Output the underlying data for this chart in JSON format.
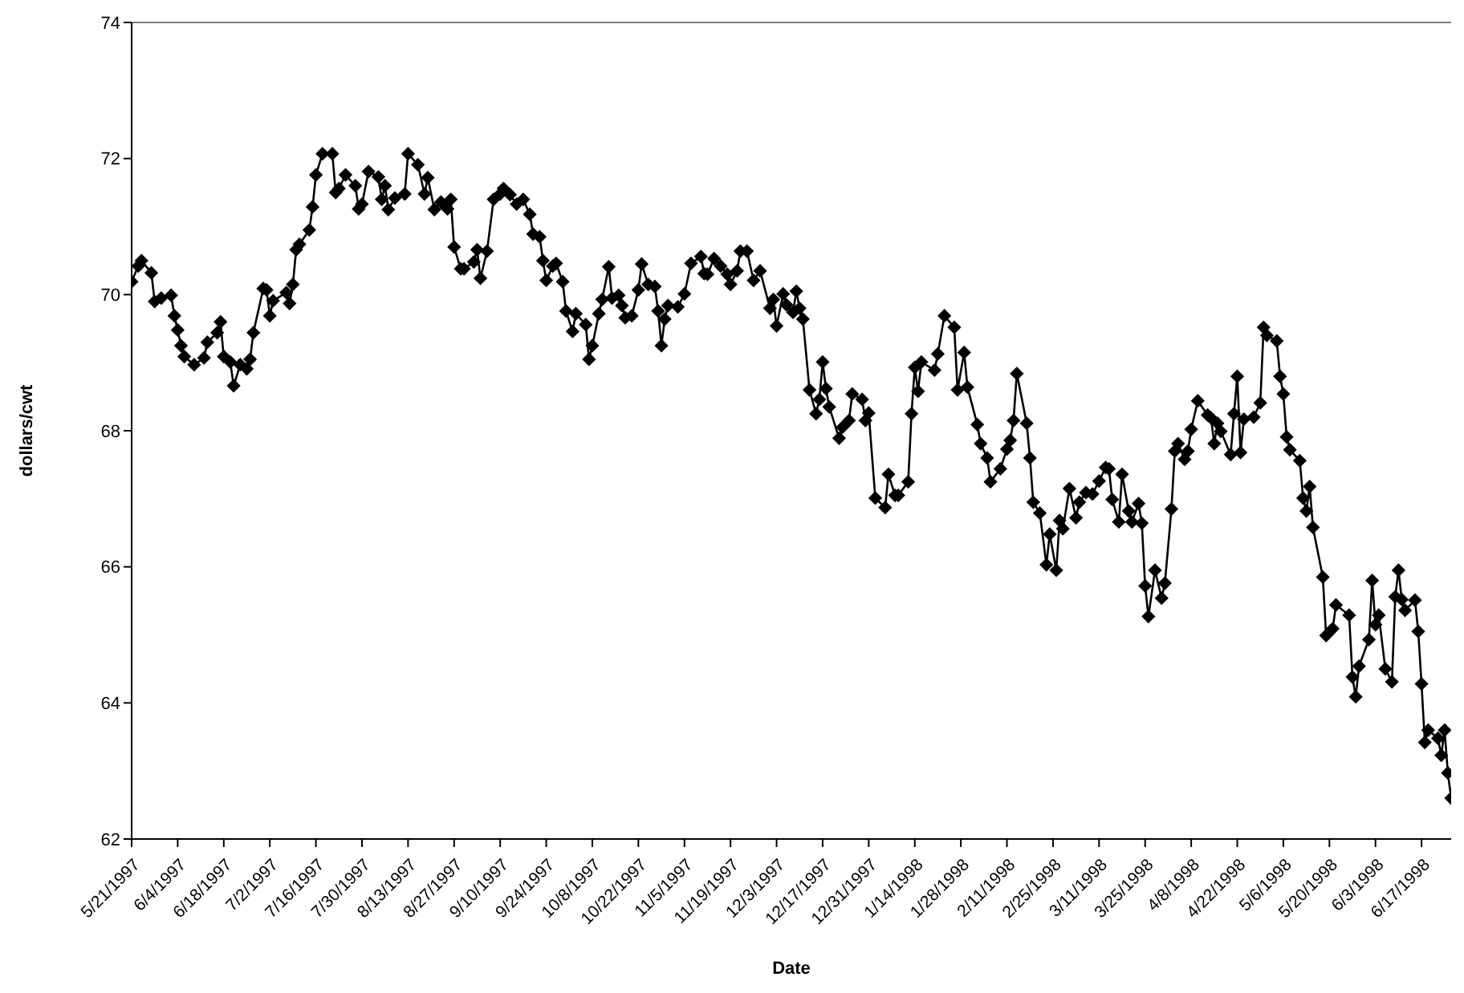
{
  "chart_data": {
    "type": "line",
    "xlabel": "Date",
    "ylabel": "dollars/cwt",
    "ylim": [
      62,
      74
    ],
    "yticks": [
      62,
      64,
      66,
      68,
      70,
      72,
      74
    ],
    "xlim": [
      "1997-05-21",
      "1998-06-26"
    ],
    "xticks": [
      {
        "value": "1997-05-21",
        "label": "5/21/1997"
      },
      {
        "value": "1997-06-04",
        "label": "6/4/1997"
      },
      {
        "value": "1997-06-18",
        "label": "6/18/1997"
      },
      {
        "value": "1997-07-02",
        "label": "7/2/1997"
      },
      {
        "value": "1997-07-16",
        "label": "7/16/1997"
      },
      {
        "value": "1997-07-30",
        "label": "7/30/1997"
      },
      {
        "value": "1997-08-13",
        "label": "8/13/1997"
      },
      {
        "value": "1997-08-27",
        "label": "8/27/1997"
      },
      {
        "value": "1997-09-10",
        "label": "9/10/1997"
      },
      {
        "value": "1997-09-24",
        "label": "9/24/1997"
      },
      {
        "value": "1997-10-08",
        "label": "10/8/1997"
      },
      {
        "value": "1997-10-22",
        "label": "10/22/1997"
      },
      {
        "value": "1997-11-05",
        "label": "11/5/1997"
      },
      {
        "value": "1997-11-19",
        "label": "11/19/1997"
      },
      {
        "value": "1997-12-03",
        "label": "12/3/1997"
      },
      {
        "value": "1997-12-17",
        "label": "12/17/1997"
      },
      {
        "value": "1997-12-31",
        "label": "12/31/1997"
      },
      {
        "value": "1998-01-14",
        "label": "1/14/1998"
      },
      {
        "value": "1998-01-28",
        "label": "1/28/1998"
      },
      {
        "value": "1998-02-11",
        "label": "2/11/1998"
      },
      {
        "value": "1998-02-25",
        "label": "2/25/1998"
      },
      {
        "value": "1998-03-11",
        "label": "3/11/1998"
      },
      {
        "value": "1998-03-25",
        "label": "3/25/1998"
      },
      {
        "value": "1998-04-08",
        "label": "4/8/1998"
      },
      {
        "value": "1998-04-22",
        "label": "4/22/1998"
      },
      {
        "value": "1998-05-06",
        "label": "5/6/1998"
      },
      {
        "value": "1998-05-20",
        "label": "5/20/1998"
      },
      {
        "value": "1998-06-03",
        "label": "6/3/1998"
      },
      {
        "value": "1998-06-17",
        "label": "6/17/1998"
      }
    ],
    "grid": false,
    "legend": false,
    "marker": "diamond",
    "line_style": "solid",
    "series": [
      {
        "color": "#000000",
        "x": [
          "1997-05-21",
          "1997-05-23",
          "1997-05-24",
          "1997-05-27",
          "1997-05-28",
          "1997-05-30",
          "1997-06-02",
          "1997-06-03",
          "1997-06-04",
          "1997-06-05",
          "1997-06-06",
          "1997-06-09",
          "1997-06-12",
          "1997-06-13",
          "1997-06-16",
          "1997-06-17",
          "1997-06-18",
          "1997-06-20",
          "1997-06-21",
          "1997-06-23",
          "1997-06-25",
          "1997-06-26",
          "1997-06-27",
          "1997-06-30",
          "1997-07-01",
          "1997-07-02",
          "1997-07-03",
          "1997-07-07",
          "1997-07-08",
          "1997-07-09",
          "1997-07-10",
          "1997-07-11",
          "1997-07-14",
          "1997-07-15",
          "1997-07-16",
          "1997-07-18",
          "1997-07-21",
          "1997-07-22",
          "1997-07-23",
          "1997-07-25",
          "1997-07-28",
          "1997-07-29",
          "1997-07-30",
          "1997-08-01",
          "1997-08-04",
          "1997-08-05",
          "1997-08-06",
          "1997-08-07",
          "1997-08-09",
          "1997-08-12",
          "1997-08-13",
          "1997-08-16",
          "1997-08-18",
          "1997-08-19",
          "1997-08-21",
          "1997-08-23",
          "1997-08-25",
          "1997-08-26",
          "1997-08-27",
          "1997-08-29",
          "1997-08-30",
          "1997-09-02",
          "1997-09-03",
          "1997-09-04",
          "1997-09-06",
          "1997-09-08",
          "1997-09-10",
          "1997-09-11",
          "1997-09-13",
          "1997-09-15",
          "1997-09-17",
          "1997-09-19",
          "1997-09-20",
          "1997-09-22",
          "1997-09-23",
          "1997-09-24",
          "1997-09-26",
          "1997-09-27",
          "1997-09-29",
          "1997-09-30",
          "1997-10-02",
          "1997-10-03",
          "1997-10-06",
          "1997-10-07",
          "1997-10-08",
          "1997-10-10",
          "1997-10-11",
          "1997-10-13",
          "1997-10-14",
          "1997-10-16",
          "1997-10-17",
          "1997-10-18",
          "1997-10-20",
          "1997-10-22",
          "1997-10-23",
          "1997-10-25",
          "1997-10-27",
          "1997-10-28",
          "1997-10-29",
          "1997-10-30",
          "1997-10-31",
          "1997-11-03",
          "1997-11-05",
          "1997-11-07",
          "1997-11-10",
          "1997-11-11",
          "1997-11-12",
          "1997-11-14",
          "1997-11-16",
          "1997-11-18",
          "1997-11-19",
          "1997-11-21",
          "1997-11-22",
          "1997-11-24",
          "1997-11-26",
          "1997-11-28",
          "1997-12-01",
          "1997-12-02",
          "1997-12-03",
          "1997-12-05",
          "1997-12-06",
          "1997-12-08",
          "1997-12-09",
          "1997-12-10",
          "1997-12-11",
          "1997-12-13",
          "1997-12-15",
          "1997-12-16",
          "1997-12-17",
          "1997-12-18",
          "1997-12-19",
          "1997-12-22",
          "1997-12-23",
          "1997-12-25",
          "1997-12-26",
          "1997-12-29",
          "1997-12-30",
          "1997-12-31",
          "1998-01-02",
          "1998-01-05",
          "1998-01-06",
          "1998-01-08",
          "1998-01-09",
          "1998-01-12",
          "1998-01-13",
          "1998-01-14",
          "1998-01-15",
          "1998-01-16",
          "1998-01-20",
          "1998-01-21",
          "1998-01-23",
          "1998-01-26",
          "1998-01-27",
          "1998-01-29",
          "1998-01-30",
          "1998-02-02",
          "1998-02-03",
          "1998-02-05",
          "1998-02-06",
          "1998-02-09",
          "1998-02-11",
          "1998-02-12",
          "1998-02-13",
          "1998-02-14",
          "1998-02-17",
          "1998-02-18",
          "1998-02-19",
          "1998-02-21",
          "1998-02-23",
          "1998-02-24",
          "1998-02-26",
          "1998-02-27",
          "1998-02-28",
          "1998-03-02",
          "1998-03-04",
          "1998-03-05",
          "1998-03-07",
          "1998-03-09",
          "1998-03-11",
          "1998-03-13",
          "1998-03-14",
          "1998-03-15",
          "1998-03-17",
          "1998-03-18",
          "1998-03-20",
          "1998-03-21",
          "1998-03-23",
          "1998-03-24",
          "1998-03-25",
          "1998-03-26",
          "1998-03-28",
          "1998-03-30",
          "1998-03-31",
          "1998-04-02",
          "1998-04-03",
          "1998-04-04",
          "1998-04-06",
          "1998-04-07",
          "1998-04-08",
          "1998-04-10",
          "1998-04-13",
          "1998-04-14",
          "1998-04-15",
          "1998-04-16",
          "1998-04-17",
          "1998-04-20",
          "1998-04-21",
          "1998-04-22",
          "1998-04-23",
          "1998-04-24",
          "1998-04-27",
          "1998-04-29",
          "1998-04-30",
          "1998-05-01",
          "1998-05-04",
          "1998-05-05",
          "1998-05-06",
          "1998-05-07",
          "1998-05-08",
          "1998-05-11",
          "1998-05-12",
          "1998-05-13",
          "1998-05-14",
          "1998-05-15",
          "1998-05-18",
          "1998-05-19",
          "1998-05-21",
          "1998-05-22",
          "1998-05-26",
          "1998-05-27",
          "1998-05-28",
          "1998-05-29",
          "1998-06-01",
          "1998-06-02",
          "1998-06-03",
          "1998-06-04",
          "1998-06-06",
          "1998-06-08",
          "1998-06-09",
          "1998-06-10",
          "1998-06-11",
          "1998-06-12",
          "1998-06-15",
          "1998-06-16",
          "1998-06-17",
          "1998-06-18",
          "1998-06-19",
          "1998-06-22",
          "1998-06-23",
          "1998-06-24",
          "1998-06-25",
          "1998-06-26"
        ],
        "values": [
          70.19,
          70.42,
          70.5,
          70.32,
          69.9,
          69.95,
          69.99,
          69.69,
          69.48,
          69.25,
          69.09,
          68.97,
          69.07,
          69.3,
          69.44,
          69.6,
          69.09,
          69.01,
          68.66,
          68.97,
          68.91,
          69.05,
          69.44,
          70.09,
          70.07,
          69.69,
          69.91,
          70.03,
          69.87,
          70.15,
          70.66,
          70.74,
          70.95,
          71.29,
          71.76,
          72.07,
          72.07,
          71.5,
          71.56,
          71.76,
          71.6,
          71.26,
          71.33,
          71.81,
          71.73,
          71.4,
          71.6,
          71.25,
          71.42,
          71.48,
          72.07,
          71.91,
          71.48,
          71.72,
          71.25,
          71.36,
          71.26,
          71.4,
          70.7,
          70.38,
          70.38,
          70.48,
          70.66,
          70.24,
          70.64,
          71.4,
          71.48,
          71.56,
          71.47,
          71.33,
          71.4,
          71.18,
          70.89,
          70.85,
          70.5,
          70.21,
          70.42,
          70.46,
          70.19,
          69.76,
          69.46,
          69.72,
          69.56,
          69.05,
          69.25,
          69.72,
          69.93,
          70.41,
          69.95,
          69.99,
          69.84,
          69.66,
          69.69,
          70.07,
          70.45,
          70.15,
          70.12,
          69.76,
          69.25,
          69.64,
          69.84,
          69.82,
          70.01,
          70.46,
          70.56,
          70.31,
          70.3,
          70.53,
          70.42,
          70.3,
          70.15,
          70.35,
          70.64,
          70.64,
          70.21,
          70.35,
          69.8,
          69.93,
          69.54,
          70.01,
          69.85,
          69.74,
          70.05,
          69.8,
          69.64,
          68.6,
          68.25,
          68.46,
          69.01,
          68.62,
          68.35,
          67.89,
          68.05,
          68.15,
          68.54,
          68.46,
          68.15,
          68.26,
          67.01,
          66.87,
          67.36,
          67.05,
          67.05,
          67.25,
          68.25,
          68.93,
          68.58,
          69.01,
          68.89,
          69.13,
          69.69,
          69.52,
          68.6,
          69.15,
          68.64,
          68.09,
          67.81,
          67.6,
          67.25,
          67.44,
          67.73,
          67.86,
          68.15,
          68.84,
          68.11,
          67.6,
          66.95,
          66.79,
          66.03,
          66.48,
          65.95,
          66.68,
          66.56,
          67.15,
          66.72,
          66.95,
          67.09,
          67.07,
          67.26,
          67.46,
          67.44,
          66.99,
          66.66,
          67.36,
          66.82,
          66.66,
          66.93,
          66.64,
          65.72,
          65.27,
          65.95,
          65.54,
          65.76,
          66.85,
          67.7,
          67.81,
          67.58,
          67.7,
          68.02,
          68.44,
          68.23,
          68.19,
          67.81,
          68.11,
          67.99,
          67.65,
          68.25,
          68.8,
          67.68,
          68.17,
          68.2,
          68.41,
          69.52,
          69.4,
          69.32,
          68.8,
          68.54,
          67.91,
          67.72,
          67.56,
          67.01,
          66.82,
          67.18,
          66.58,
          65.85,
          64.99,
          65.09,
          65.44,
          65.29,
          64.38,
          64.09,
          64.54,
          64.93,
          65.8,
          65.15,
          65.29,
          64.5,
          64.31,
          65.56,
          65.95,
          65.52,
          65.36,
          65.51,
          65.05,
          64.28,
          63.42,
          63.6,
          63.48,
          63.23,
          63.6,
          62.97,
          62.6
        ]
      }
    ]
  }
}
